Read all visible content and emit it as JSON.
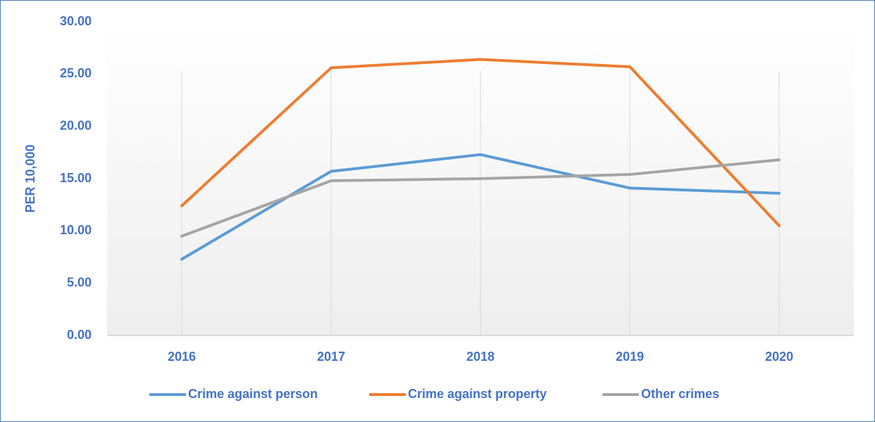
{
  "chart_data": {
    "type": "line",
    "ylabel": "PER 10,000",
    "categories": [
      "2016",
      "2017",
      "2018",
      "2019",
      "2020"
    ],
    "series": [
      {
        "name": "Crime against person",
        "color": "#5b9bd5",
        "values": [
          7.3,
          15.7,
          17.3,
          14.1,
          13.6
        ]
      },
      {
        "name": "Crime against property",
        "color": "#ed7d31",
        "values": [
          12.4,
          25.6,
          26.4,
          25.7,
          10.5
        ]
      },
      {
        "name": "Other crimes",
        "color": "#a5a5a5",
        "values": [
          9.5,
          14.8,
          15.0,
          15.4,
          16.8
        ]
      }
    ],
    "ylim": [
      0,
      30
    ],
    "yticks": [
      {
        "value": 0,
        "label": "0.00"
      },
      {
        "value": 5,
        "label": "5.00"
      },
      {
        "value": 10,
        "label": "10.00"
      },
      {
        "value": 15,
        "label": "15.00"
      },
      {
        "value": 20,
        "label": "20.00"
      },
      {
        "value": 25,
        "label": "25.00"
      },
      {
        "value": 30,
        "label": "30.00"
      }
    ],
    "grid": "x",
    "legend": "bottom"
  }
}
